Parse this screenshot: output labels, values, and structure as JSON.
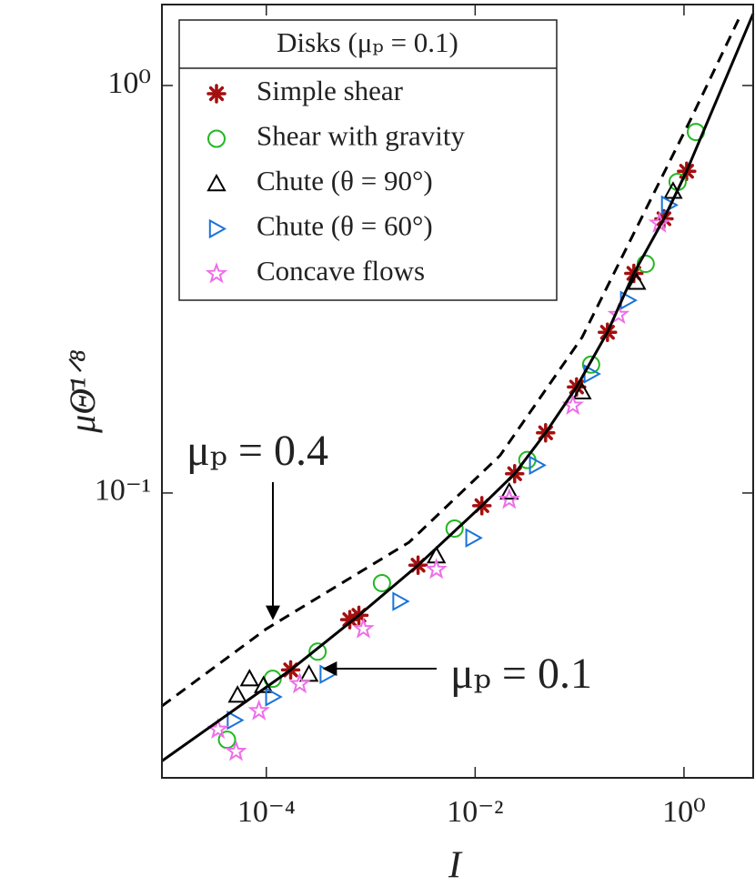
{
  "chart_data": {
    "type": "scatter",
    "xlabel": "I",
    "ylabel": "μΘ̄¹ᐟ⁸",
    "xscale": "log",
    "yscale": "log",
    "xlim": [
      1e-05,
      4.6
    ],
    "ylim": [
      0.02,
      1.58
    ],
    "xticks": [
      {
        "value": 0.0001,
        "label": "10⁻⁴"
      },
      {
        "value": 0.01,
        "label": "10⁻²"
      },
      {
        "value": 1,
        "label": "10⁰"
      }
    ],
    "yticks": [
      {
        "value": 0.1,
        "label": "10⁻¹"
      },
      {
        "value": 1,
        "label": "10⁰"
      }
    ],
    "legend": {
      "title": "Disks (μₚ = 0.1)",
      "position": "upper left"
    },
    "series": [
      {
        "name": "Simple shear",
        "color": "#a50f0f",
        "marker": "asterisk",
        "x": [
          0.000171,
          0.00063,
          0.00077,
          0.00284,
          0.0116,
          0.0239,
          0.0473,
          0.0936,
          0.185,
          0.331,
          0.643,
          1.06
        ],
        "values": [
          0.0368,
          0.0489,
          0.0501,
          0.0665,
          0.0931,
          0.1115,
          0.1405,
          0.182,
          0.248,
          0.346,
          0.471,
          0.616
        ]
      },
      {
        "name": "Shear with gravity",
        "color": "#22b822",
        "marker": "circle",
        "x": [
          4.2e-05,
          0.000115,
          0.00031,
          0.00128,
          0.00635,
          0.0316,
          0.129,
          0.43,
          0.869,
          1.3
        ],
        "values": [
          0.0248,
          0.035,
          0.0408,
          0.0601,
          0.0818,
          0.1205,
          0.2066,
          0.365,
          0.58,
          0.769
        ]
      },
      {
        "name": "Chute (θ = 90°)",
        "color": "#000000",
        "marker": "triangle-up",
        "x": [
          5.3e-05,
          6.9e-05,
          9.4e-05,
          0.000256,
          0.00425,
          0.0212,
          0.1056,
          0.352,
          0.786
        ],
        "values": [
          0.0319,
          0.035,
          0.0337,
          0.0359,
          0.0701,
          0.1005,
          0.177,
          0.329,
          0.55
        ]
      },
      {
        "name": "Chute (θ = 60°)",
        "color": "#1a73d9",
        "marker": "triangle-right",
        "x": [
          4.93e-05,
          0.000115,
          0.000382,
          0.0019,
          0.0095,
          0.0387,
          0.129,
          0.288,
          0.711
        ],
        "values": [
          0.0277,
          0.0316,
          0.0359,
          0.0542,
          0.0776,
          0.117,
          0.196,
          0.297,
          0.509
        ]
      },
      {
        "name": "Concave flows",
        "color": "#ee6ee8",
        "marker": "star",
        "x": [
          3.44e-05,
          5.13e-05,
          8.5e-05,
          0.000209,
          0.00085,
          0.00425,
          0.0212,
          0.0863,
          0.236,
          0.582
        ],
        "values": [
          0.0263,
          0.0232,
          0.0292,
          0.034,
          0.0464,
          0.0649,
          0.0964,
          0.164,
          0.274,
          0.459
        ]
      }
    ],
    "lines": [
      {
        "style": "solid",
        "color": "#000000",
        "x": [
          1e-05,
          0.000171,
          0.00077,
          0.00284,
          0.0116,
          0.0239,
          0.0473,
          0.0936,
          0.185,
          0.331,
          0.643,
          1.06,
          4.6
        ],
        "values": [
          0.022,
          0.0368,
          0.0501,
          0.0665,
          0.0931,
          0.1115,
          0.1405,
          0.182,
          0.248,
          0.346,
          0.471,
          0.616,
          1.5
        ]
      },
      {
        "style": "dashed",
        "color": "#000000",
        "x": [
          1e-05,
          0.0001,
          0.00233,
          0.0173,
          0.1056,
          0.352,
          1.17,
          3.54
        ],
        "values": [
          0.03,
          0.0464,
          0.0757,
          0.1236,
          0.241,
          0.448,
          0.83,
          1.5
        ]
      }
    ],
    "annotations": [
      "μₚ = 0.4",
      "μₚ = 0.1"
    ]
  }
}
